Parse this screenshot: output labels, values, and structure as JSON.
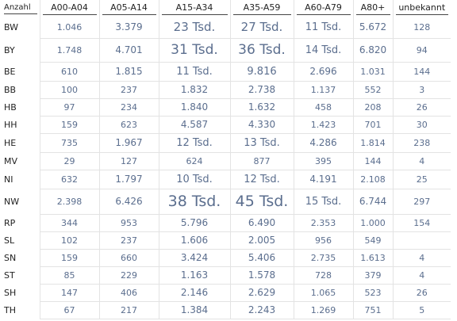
{
  "table": {
    "header": [
      "Anzahl",
      "A00-A04",
      "A05-A14",
      "A15-A34",
      "A35-A59",
      "A60-A79",
      "A80+",
      "unbekannt"
    ],
    "rows": [
      {
        "label": "BW",
        "cells": [
          "1.046",
          "3.379",
          "23 Tsd.",
          "27 Tsd.",
          "11 Tsd.",
          "5.672",
          "128"
        ]
      },
      {
        "label": "BY",
        "cells": [
          "1.748",
          "4.701",
          "31 Tsd.",
          "36 Tsd.",
          "14 Tsd.",
          "6.820",
          "94"
        ]
      },
      {
        "label": "BE",
        "cells": [
          "610",
          "1.815",
          "11 Tsd.",
          "9.816",
          "2.696",
          "1.031",
          "144"
        ]
      },
      {
        "label": "BB",
        "cells": [
          "100",
          "237",
          "1.832",
          "2.738",
          "1.137",
          "552",
          "3"
        ]
      },
      {
        "label": "HB",
        "cells": [
          "97",
          "234",
          "1.840",
          "1.632",
          "458",
          "208",
          "26"
        ]
      },
      {
        "label": "HH",
        "cells": [
          "159",
          "623",
          "4.587",
          "4.330",
          "1.423",
          "701",
          "30"
        ]
      },
      {
        "label": "HE",
        "cells": [
          "735",
          "1.967",
          "12 Tsd.",
          "13 Tsd.",
          "4.286",
          "1.814",
          "238"
        ]
      },
      {
        "label": "MV",
        "cells": [
          "29",
          "127",
          "624",
          "877",
          "395",
          "144",
          "4"
        ]
      },
      {
        "label": "NI",
        "cells": [
          "632",
          "1.797",
          "10 Tsd.",
          "12 Tsd.",
          "4.191",
          "2.108",
          "25"
        ]
      },
      {
        "label": "NW",
        "cells": [
          "2.398",
          "6.426",
          "38 Tsd.",
          "45 Tsd.",
          "15 Tsd.",
          "6.744",
          "297"
        ]
      },
      {
        "label": "RP",
        "cells": [
          "344",
          "953",
          "5.796",
          "6.490",
          "2.353",
          "1.000",
          "154"
        ]
      },
      {
        "label": "SL",
        "cells": [
          "102",
          "237",
          "1.606",
          "2.005",
          "956",
          "549",
          null
        ]
      },
      {
        "label": "SN",
        "cells": [
          "159",
          "660",
          "3.424",
          "5.406",
          "2.735",
          "1.613",
          "4"
        ]
      },
      {
        "label": "ST",
        "cells": [
          "85",
          "229",
          "1.163",
          "1.578",
          "728",
          "379",
          "4"
        ]
      },
      {
        "label": "SH",
        "cells": [
          "147",
          "406",
          "2.146",
          "2.629",
          "1.065",
          "523",
          "26"
        ]
      },
      {
        "label": "TH",
        "cells": [
          "67",
          "217",
          "1.384",
          "2.243",
          "1.269",
          "751",
          "5"
        ]
      }
    ]
  }
}
